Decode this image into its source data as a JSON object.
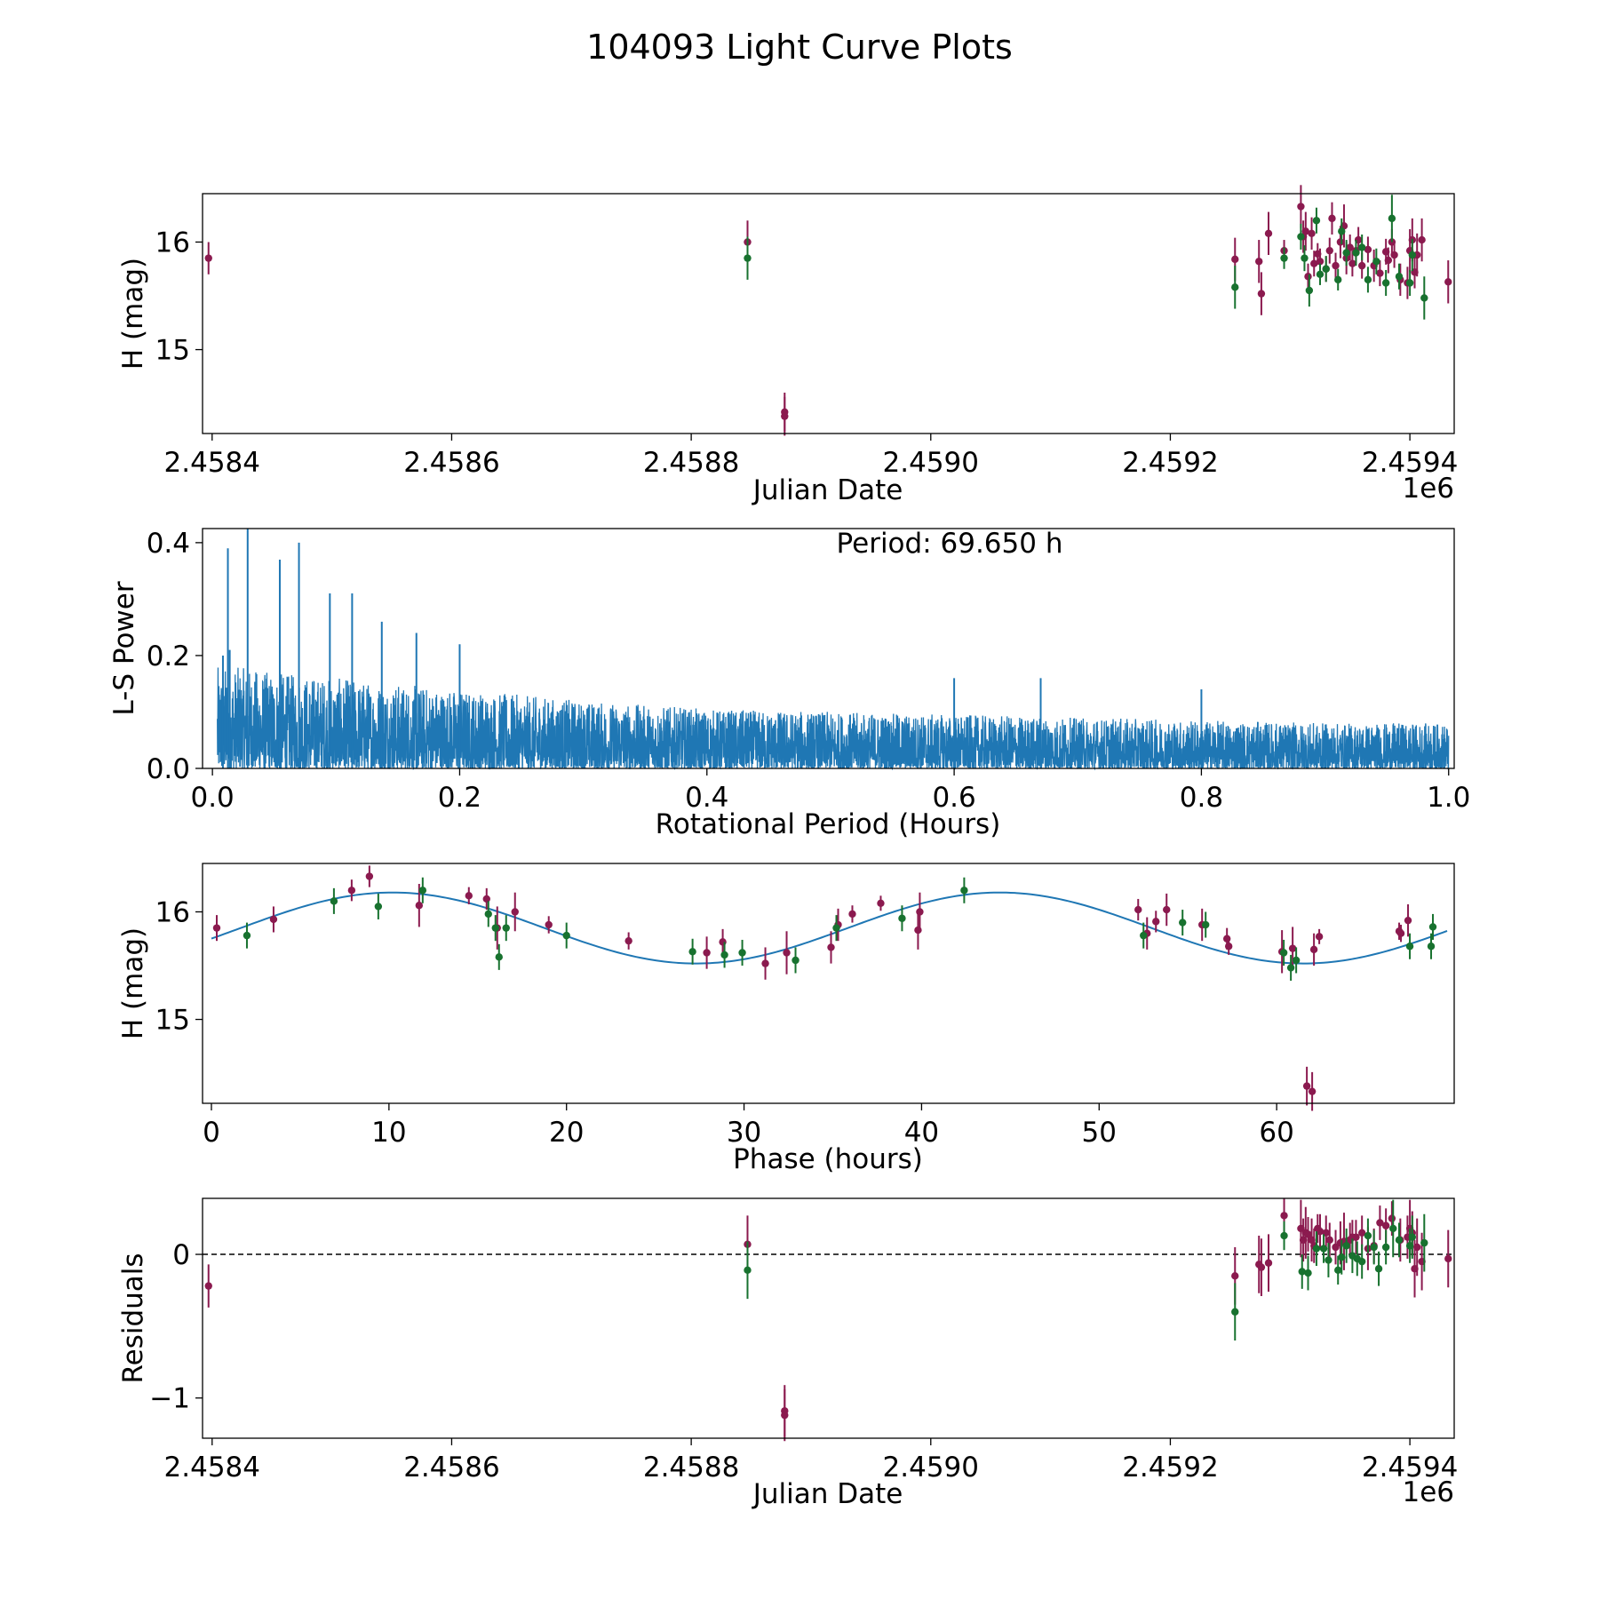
{
  "figure_title": "104093 Light Curve Plots",
  "colors": {
    "maroon": "#8b1a4f",
    "green": "#18722f",
    "blue": "#1f77b4",
    "frame": "#000000"
  },
  "chart_data": [
    {
      "type": "scatter",
      "title": "",
      "xlabel": "Julian Date",
      "ylabel": "H (mag)",
      "offset_label": "1e6",
      "xlim": [
        2458392,
        2459437
      ],
      "ylim": [
        14.22,
        16.45
      ],
      "xticks": [
        2458400,
        2458600,
        2458800,
        2459000,
        2459200,
        2459400
      ],
      "xtick_labels": [
        "2.4584",
        "2.4586",
        "2.4588",
        "2.4590",
        "2.4592",
        "2.4594"
      ],
      "yticks": [
        15,
        16
      ],
      "ytick_labels": [
        "15",
        "16"
      ],
      "series": [
        {
          "name": "maroon",
          "color": "#8b1a4f",
          "x": [
            2458397,
            2458847,
            2458878,
            2458878,
            2459254,
            2459274,
            2459276,
            2459282,
            2459295,
            2459309,
            2459311,
            2459313,
            2459315,
            2459318,
            2459320,
            2459323,
            2459325,
            2459330,
            2459333,
            2459335,
            2459338,
            2459342,
            2459345,
            2459347,
            2459350,
            2459352,
            2459355,
            2459357,
            2459360,
            2459365,
            2459370,
            2459375,
            2459380,
            2459382,
            2459385,
            2459387,
            2459392,
            2459398,
            2459400,
            2459402,
            2459404,
            2459406,
            2459410,
            2459432
          ],
          "y": [
            15.85,
            16.0,
            14.42,
            14.38,
            15.84,
            15.82,
            15.52,
            16.08,
            15.92,
            16.33,
            16.05,
            16.1,
            15.68,
            16.08,
            15.8,
            15.89,
            15.82,
            15.75,
            15.92,
            16.22,
            15.78,
            16.0,
            16.15,
            15.85,
            15.95,
            15.8,
            15.92,
            16.02,
            15.78,
            15.93,
            15.78,
            15.71,
            15.91,
            15.83,
            16.0,
            15.88,
            15.65,
            15.62,
            15.92,
            16.02,
            15.72,
            15.88,
            16.02,
            15.63
          ],
          "err": [
            0.15,
            0.2,
            0.18,
            0.18,
            0.2,
            0.2,
            0.2,
            0.2,
            0.1,
            0.2,
            0.15,
            0.18,
            0.12,
            0.15,
            0.12,
            0.1,
            0.12,
            0.12,
            0.12,
            0.15,
            0.12,
            0.15,
            0.2,
            0.15,
            0.12,
            0.12,
            0.12,
            0.12,
            0.12,
            0.12,
            0.15,
            0.12,
            0.12,
            0.12,
            0.12,
            0.12,
            0.15,
            0.15,
            0.2,
            0.2,
            0.15,
            0.2,
            0.2,
            0.2
          ]
        },
        {
          "name": "green",
          "color": "#18722f",
          "x": [
            2458847,
            2459254,
            2459295,
            2459309,
            2459312,
            2459316,
            2459322,
            2459325,
            2459330,
            2459340,
            2459343,
            2459347,
            2459355,
            2459360,
            2459365,
            2459372,
            2459380,
            2459385,
            2459391,
            2459400,
            2459402,
            2459412
          ],
          "y": [
            15.85,
            15.58,
            15.85,
            16.05,
            15.85,
            15.55,
            16.2,
            15.7,
            15.75,
            15.65,
            16.1,
            15.9,
            15.9,
            15.95,
            15.65,
            15.82,
            15.62,
            16.22,
            15.68,
            15.62,
            15.88,
            15.48
          ],
          "err": [
            0.2,
            0.2,
            0.1,
            0.12,
            0.12,
            0.15,
            0.12,
            0.1,
            0.12,
            0.1,
            0.12,
            0.12,
            0.12,
            0.12,
            0.12,
            0.12,
            0.12,
            0.22,
            0.12,
            0.12,
            0.15,
            0.2
          ]
        }
      ]
    },
    {
      "type": "line",
      "title": "",
      "xlabel": "Rotational Period (Hours)",
      "ylabel": "L-S Power",
      "annotation": "Period: 69.650 h",
      "xlim": [
        -0.008,
        1.0045
      ],
      "ylim": [
        0,
        0.425
      ],
      "xticks": [
        0.0,
        0.2,
        0.4,
        0.6,
        0.8,
        1.0
      ],
      "xtick_labels": [
        "0.0",
        "0.2",
        "0.4",
        "0.6",
        "0.8",
        "1.0"
      ],
      "yticks": [
        0.0,
        0.2,
        0.4
      ],
      "ytick_labels": [
        "0.0",
        "0.2",
        "0.4"
      ],
      "envelope": {
        "x": [
          0.0,
          0.02,
          0.05,
          0.1,
          0.2,
          0.3,
          0.4,
          0.5,
          0.6,
          0.7,
          0.8,
          0.9,
          1.0
        ],
        "y": [
          0.18,
          0.18,
          0.17,
          0.16,
          0.14,
          0.12,
          0.105,
          0.1,
          0.095,
          0.09,
          0.085,
          0.08,
          0.08
        ]
      },
      "peaks": {
        "x": [
          0.0085,
          0.0125,
          0.014,
          0.0285,
          0.0545,
          0.07,
          0.095,
          0.113,
          0.137,
          0.165,
          0.2,
          0.6,
          0.67,
          0.8
        ],
        "y": [
          0.2,
          0.39,
          0.21,
          0.425,
          0.37,
          0.4,
          0.31,
          0.31,
          0.26,
          0.24,
          0.22,
          0.16,
          0.16,
          0.14
        ]
      }
    },
    {
      "type": "scatter",
      "title": "",
      "xlabel": "Phase (hours)",
      "ylabel": "H (mag)",
      "xlim": [
        -0.5,
        70.0
      ],
      "ylim": [
        14.22,
        16.45
      ],
      "xticks": [
        0,
        10,
        20,
        30,
        40,
        50,
        60
      ],
      "xtick_labels": [
        "0",
        "10",
        "20",
        "30",
        "40",
        "50",
        "60"
      ],
      "yticks": [
        15,
        16
      ],
      "ytick_labels": [
        "15",
        "16"
      ],
      "fit": {
        "color": "#1f77b4",
        "mean": 15.85,
        "amplitude": 0.33,
        "period": 34.2,
        "phase_peak": 10.2,
        "x_range": [
          0,
          69.6
        ]
      },
      "series": [
        {
          "name": "maroon",
          "color": "#8b1a4f",
          "x": [
            0.3,
            3.5,
            7.9,
            8.9,
            11.7,
            14.5,
            15.5,
            16.1,
            17.1,
            19.0,
            23.5,
            27.9,
            28.8,
            31.2,
            32.4,
            34.9,
            35.3,
            36.1,
            37.7,
            39.8,
            39.9,
            52.2,
            52.7,
            53.2,
            53.8,
            55.8,
            57.2,
            57.3,
            60.3,
            60.9,
            61.7,
            62.0,
            62.1,
            62.4,
            66.9,
            67.0,
            67.4
          ],
          "y": [
            15.85,
            15.93,
            16.2,
            16.33,
            16.06,
            16.15,
            16.12,
            15.85,
            16.0,
            15.88,
            15.73,
            15.62,
            15.72,
            15.52,
            15.62,
            15.67,
            15.88,
            15.98,
            16.08,
            15.83,
            16.0,
            16.02,
            15.8,
            15.91,
            16.02,
            15.88,
            15.75,
            15.68,
            15.63,
            15.66,
            14.38,
            14.33,
            15.65,
            15.77,
            15.82,
            15.8,
            15.92
          ],
          "err": [
            0.12,
            0.12,
            0.1,
            0.1,
            0.2,
            0.08,
            0.1,
            0.2,
            0.18,
            0.08,
            0.08,
            0.15,
            0.12,
            0.15,
            0.2,
            0.15,
            0.15,
            0.08,
            0.07,
            0.18,
            0.18,
            0.1,
            0.15,
            0.1,
            0.15,
            0.15,
            0.1,
            0.08,
            0.2,
            0.2,
            0.18,
            0.18,
            0.15,
            0.07,
            0.08,
            0.08,
            0.15
          ]
        },
        {
          "name": "green",
          "color": "#18722f",
          "x": [
            2.0,
            6.9,
            9.4,
            11.9,
            15.6,
            16.0,
            16.2,
            16.6,
            20.0,
            27.1,
            28.9,
            29.9,
            32.9,
            35.2,
            38.9,
            42.4,
            52.5,
            54.7,
            56.0,
            60.4,
            60.8,
            61.1,
            67.5,
            68.7,
            68.8
          ],
          "y": [
            15.78,
            16.1,
            16.05,
            16.2,
            15.98,
            15.85,
            15.58,
            15.85,
            15.78,
            15.63,
            15.6,
            15.62,
            15.55,
            15.85,
            15.94,
            16.2,
            15.78,
            15.9,
            15.88,
            15.62,
            15.48,
            15.55,
            15.68,
            15.68,
            15.86
          ]
        }
      ]
    },
    {
      "type": "scatter",
      "title": "",
      "xlabel": "Julian Date",
      "ylabel": "Residuals",
      "offset_label": "1e6",
      "xlim": [
        2458392,
        2459437
      ],
      "ylim": [
        -1.28,
        0.39
      ],
      "xticks": [
        2458400,
        2458600,
        2458800,
        2459000,
        2459200,
        2459400
      ],
      "xtick_labels": [
        "2.4584",
        "2.4586",
        "2.4588",
        "2.4590",
        "2.4592",
        "2.4594"
      ],
      "yticks": [
        -1,
        0
      ],
      "ytick_labels": [
        "−1",
        "0"
      ],
      "zero_line": 0,
      "series": [
        {
          "name": "maroon",
          "color": "#8b1a4f",
          "x": [
            2458397,
            2458847,
            2458878,
            2458878,
            2459254,
            2459274,
            2459276,
            2459282,
            2459295,
            2459309,
            2459311,
            2459313,
            2459315,
            2459318,
            2459320,
            2459323,
            2459325,
            2459330,
            2459333,
            2459338,
            2459342,
            2459345,
            2459350,
            2459352,
            2459355,
            2459360,
            2459365,
            2459370,
            2459375,
            2459380,
            2459385,
            2459392,
            2459398,
            2459400,
            2459402,
            2459404,
            2459406,
            2459410,
            2459432
          ],
          "y": [
            -0.22,
            0.07,
            -1.09,
            -1.12,
            -0.15,
            -0.07,
            -0.09,
            -0.06,
            0.27,
            0.18,
            0.1,
            0.15,
            0.14,
            0.1,
            0.06,
            0.18,
            0.16,
            0.15,
            0.1,
            0.05,
            0.08,
            0.09,
            0.1,
            0.12,
            0.12,
            0.15,
            0.04,
            0.06,
            0.22,
            0.2,
            0.25,
            0.1,
            0.12,
            0.18,
            0.15,
            -0.1,
            0.05,
            -0.05,
            -0.03
          ],
          "err": [
            0.15,
            0.2,
            0.18,
            0.18,
            0.2,
            0.2,
            0.2,
            0.2,
            0.12,
            0.2,
            0.15,
            0.18,
            0.12,
            0.15,
            0.12,
            0.1,
            0.12,
            0.12,
            0.12,
            0.12,
            0.15,
            0.2,
            0.12,
            0.12,
            0.12,
            0.12,
            0.15,
            0.12,
            0.12,
            0.12,
            0.12,
            0.15,
            0.15,
            0.2,
            0.15,
            0.2,
            0.2,
            0.2,
            0.2
          ]
        },
        {
          "name": "green",
          "color": "#18722f",
          "x": [
            2458847,
            2459254,
            2459295,
            2459310,
            2459315,
            2459322,
            2459328,
            2459332,
            2459340,
            2459343,
            2459347,
            2459352,
            2459356,
            2459360,
            2459365,
            2459370,
            2459374,
            2459380,
            2459386,
            2459391,
            2459400,
            2459402,
            2459412
          ],
          "y": [
            -0.11,
            -0.4,
            0.13,
            -0.12,
            -0.13,
            0.04,
            0.04,
            -0.04,
            -0.11,
            -0.02,
            0.06,
            -0.01,
            -0.03,
            -0.05,
            0.13,
            0.05,
            -0.1,
            0.05,
            0.18,
            0.1,
            0.06,
            0.12,
            0.08
          ],
          "err": [
            0.2,
            0.2,
            0.1,
            0.12,
            0.12,
            0.12,
            0.1,
            0.12,
            0.1,
            0.12,
            0.12,
            0.12,
            0.12,
            0.12,
            0.12,
            0.12,
            0.12,
            0.12,
            0.2,
            0.12,
            0.12,
            0.15,
            0.2
          ]
        }
      ]
    }
  ]
}
